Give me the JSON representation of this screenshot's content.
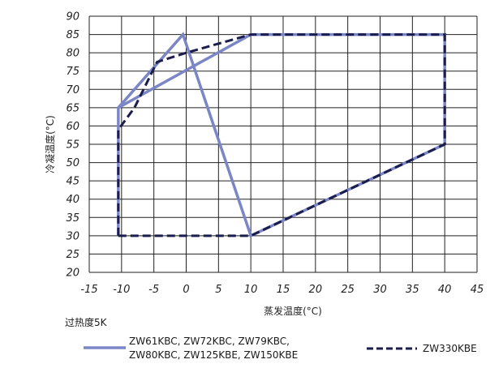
{
  "chart_data": {
    "type": "line",
    "xlabel": "蒸发温度(°C)",
    "ylabel": "冷凝温度(°C)",
    "xlim": [
      -15,
      45
    ],
    "ylim": [
      20,
      90
    ],
    "x_ticks": [
      "-15",
      "-10",
      "-5",
      "0",
      "5",
      "10",
      "15",
      "20",
      "25",
      "30",
      "35",
      "40",
      "45"
    ],
    "y_ticks": [
      "90",
      "85",
      "80",
      "75",
      "70",
      "65",
      "60",
      "55",
      "50",
      "45",
      "40",
      "35",
      "30",
      "25",
      "20"
    ],
    "grid": true,
    "series": [
      {
        "name": "ZW61KBC, ZW72KBC, ZW79KBC, ZW80KBC, ZW125KBE, ZW150KBE",
        "color": "#7b86c6",
        "style": "solid",
        "x": [
          -10.5,
          -10.5,
          10,
          40,
          40,
          10,
          -0.5,
          -10.5
        ],
        "y": [
          30,
          65,
          85,
          85,
          55,
          30,
          85,
          65
        ]
      },
      {
        "name": "ZW330KBE",
        "color": "#1b1d4d",
        "style": "dashed",
        "x": [
          -10.5,
          -10.5,
          -8,
          -4.5,
          0,
          10,
          40,
          40,
          10,
          -10.5
        ],
        "y": [
          30,
          59,
          65,
          77.5,
          80,
          85,
          85,
          55,
          30,
          30
        ]
      }
    ]
  },
  "note": "过热度5K",
  "legend": {
    "series_a_label": "ZW61KBC, ZW72KBC, ZW79KBC,\nZW80KBC, ZW125KBE, ZW150KBE",
    "series_b_label": "ZW330KBE"
  }
}
